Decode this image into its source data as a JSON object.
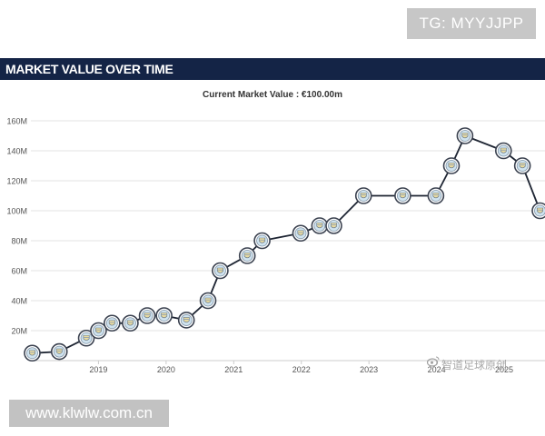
{
  "watermark_top": "TG: MYYJJPP",
  "watermark_bottom": "www.klwlw.com.cn",
  "watermark_corner": "智道足球原创",
  "header": {
    "title": "MARKET VALUE OVER TIME"
  },
  "colors": {
    "header_bg": "#142446",
    "line": "#1e2533",
    "grid": "#e3e3e3",
    "marker_fill": "#cfe3ef",
    "marker_ring": "#3b4250"
  },
  "chart_data": {
    "type": "line",
    "title": "Current Market Value : €100.00m",
    "xlabel": "",
    "ylabel": "",
    "ylim": [
      0,
      160
    ],
    "xlim": [
      2018.0,
      2025.55
    ],
    "yticks": [
      20,
      40,
      60,
      80,
      100,
      120,
      140,
      160
    ],
    "ytick_labels": [
      "20M",
      "40M",
      "60M",
      "80M",
      "100M",
      "120M",
      "140M",
      "160M"
    ],
    "xticks": [
      2019,
      2020,
      2021,
      2022,
      2023,
      2024,
      2025
    ],
    "xtick_labels": [
      "2019",
      "2020",
      "2021",
      "2022",
      "2023",
      "2024",
      "2025"
    ],
    "grid": true,
    "marker": "club-crest",
    "series": [
      {
        "points": [
          [
            2018.02,
            5
          ],
          [
            2018.42,
            6
          ],
          [
            2018.82,
            15
          ],
          [
            2019.0,
            20
          ],
          [
            2019.2,
            25
          ],
          [
            2019.47,
            25
          ],
          [
            2019.72,
            30
          ],
          [
            2019.97,
            30
          ],
          [
            2020.3,
            27
          ],
          [
            2020.62,
            40
          ],
          [
            2020.8,
            60
          ],
          [
            2021.2,
            70
          ],
          [
            2021.42,
            80
          ],
          [
            2021.99,
            85
          ],
          [
            2022.27,
            90
          ],
          [
            2022.48,
            90
          ],
          [
            2022.92,
            110
          ],
          [
            2023.5,
            110
          ],
          [
            2023.99,
            110
          ],
          [
            2024.22,
            130
          ],
          [
            2024.42,
            150
          ],
          [
            2024.99,
            140
          ],
          [
            2025.27,
            130
          ],
          [
            2025.53,
            100
          ]
        ]
      }
    ]
  }
}
